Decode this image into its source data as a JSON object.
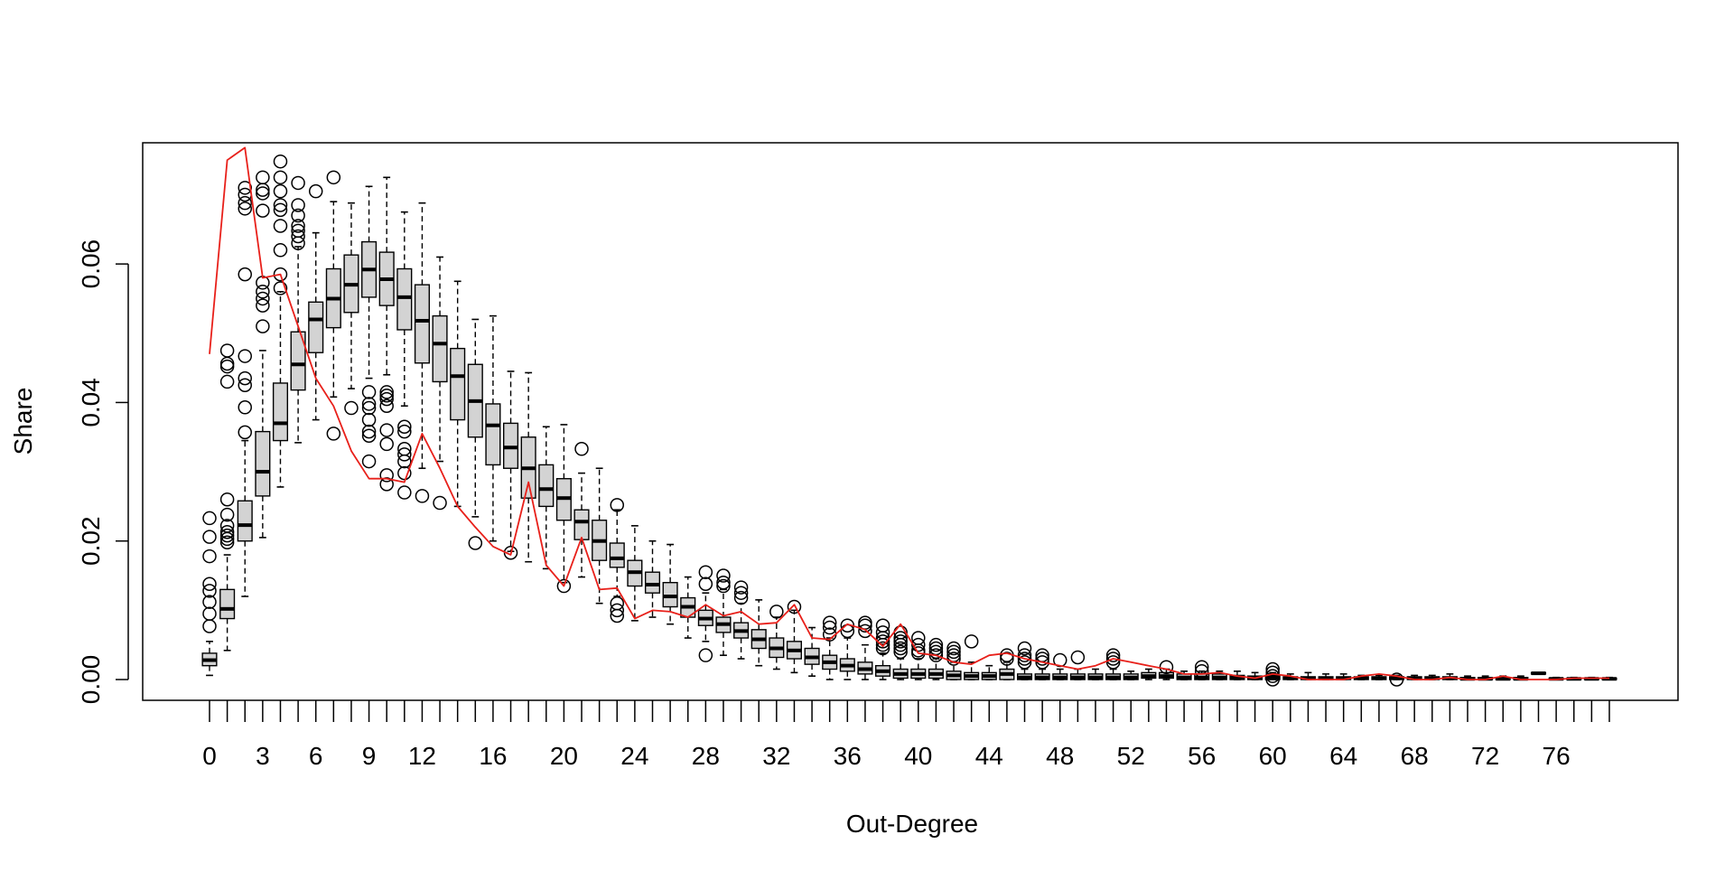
{
  "chart_data": {
    "type": "boxplot",
    "title": "",
    "xlabel": "Out-Degree",
    "ylabel": "Share",
    "x_categories_start": 0,
    "x_categories_end": 79,
    "x_tick_labels": [
      "0",
      "3",
      "6",
      "9",
      "12",
      "16",
      "20",
      "24",
      "28",
      "32",
      "36",
      "40",
      "44",
      "48",
      "52",
      "56",
      "60",
      "64",
      "68",
      "72",
      "76"
    ],
    "y_ticks": [
      "0.00",
      "0.02",
      "0.04",
      "0.06"
    ],
    "ylim": [
      -0.003,
      0.0775
    ],
    "grid": false,
    "legend": "none",
    "colors": {
      "box_fill": "#d3d3d3",
      "box_stroke": "#000000",
      "line": "#e8201a"
    },
    "boxes": [
      {
        "x": 0,
        "q1": 0.002,
        "median": 0.0028,
        "q3": 0.0038,
        "wlo": 0.0006,
        "whi": 0.0055,
        "outliers": [
          0.0233,
          0.0206,
          0.0178,
          0.0138,
          0.0128,
          0.0112,
          0.0095,
          0.0077
        ]
      },
      {
        "x": 1,
        "q1": 0.0088,
        "median": 0.0102,
        "q3": 0.013,
        "wlo": 0.0042,
        "whi": 0.018,
        "outliers": [
          0.0475,
          0.0456,
          0.0452,
          0.043,
          0.026,
          0.0238,
          0.0222,
          0.0213,
          0.0208,
          0.0203,
          0.0198
        ]
      },
      {
        "x": 2,
        "q1": 0.02,
        "median": 0.0223,
        "q3": 0.0258,
        "wlo": 0.012,
        "whi": 0.0345,
        "outliers": [
          0.071,
          0.07,
          0.0688,
          0.068,
          0.0585,
          0.0467,
          0.0435,
          0.0425,
          0.0393,
          0.0357
        ]
      },
      {
        "x": 3,
        "q1": 0.0265,
        "median": 0.03,
        "q3": 0.0358,
        "wlo": 0.0205,
        "whi": 0.0475,
        "outliers": [
          0.0725,
          0.0707,
          0.0702,
          0.0677,
          0.0573,
          0.056,
          0.055,
          0.054,
          0.051
        ]
      },
      {
        "x": 4,
        "q1": 0.0345,
        "median": 0.037,
        "q3": 0.0428,
        "wlo": 0.0278,
        "whi": 0.056,
        "outliers": [
          0.0748,
          0.0725,
          0.0705,
          0.0685,
          0.0678,
          0.0655,
          0.062,
          0.0585,
          0.0565
        ]
      },
      {
        "x": 5,
        "q1": 0.0418,
        "median": 0.0455,
        "q3": 0.0502,
        "wlo": 0.0342,
        "whi": 0.0625,
        "outliers": [
          0.0717,
          0.0685,
          0.067,
          0.0655,
          0.0648,
          0.064,
          0.063
        ]
      },
      {
        "x": 6,
        "q1": 0.0472,
        "median": 0.052,
        "q3": 0.0545,
        "wlo": 0.0375,
        "whi": 0.0645,
        "outliers": [
          0.0705
        ]
      },
      {
        "x": 7,
        "q1": 0.0508,
        "median": 0.055,
        "q3": 0.0593,
        "wlo": 0.0408,
        "whi": 0.069,
        "outliers": [
          0.0725,
          0.0355
        ]
      },
      {
        "x": 8,
        "q1": 0.053,
        "median": 0.057,
        "q3": 0.0613,
        "wlo": 0.042,
        "whi": 0.0688,
        "outliers": [
          0.0392
        ]
      },
      {
        "x": 9,
        "q1": 0.0552,
        "median": 0.0592,
        "q3": 0.0632,
        "wlo": 0.0435,
        "whi": 0.0712,
        "outliers": [
          0.0415,
          0.0398,
          0.0392,
          0.0375,
          0.0358,
          0.0352,
          0.0315
        ]
      },
      {
        "x": 10,
        "q1": 0.054,
        "median": 0.0578,
        "q3": 0.0617,
        "wlo": 0.044,
        "whi": 0.0725,
        "outliers": [
          0.0415,
          0.041,
          0.0405,
          0.0395,
          0.036,
          0.034,
          0.0295,
          0.0282
        ]
      },
      {
        "x": 11,
        "q1": 0.0505,
        "median": 0.0552,
        "q3": 0.0593,
        "wlo": 0.0395,
        "whi": 0.0675,
        "outliers": [
          0.0365,
          0.0358,
          0.0333,
          0.0325,
          0.0315,
          0.0298,
          0.027
        ]
      },
      {
        "x": 12,
        "q1": 0.0457,
        "median": 0.0518,
        "q3": 0.057,
        "wlo": 0.0305,
        "whi": 0.0688,
        "outliers": [
          0.0265
        ]
      },
      {
        "x": 13,
        "q1": 0.043,
        "median": 0.0485,
        "q3": 0.0525,
        "wlo": 0.0315,
        "whi": 0.061,
        "outliers": [
          0.0255
        ]
      },
      {
        "x": 14,
        "q1": 0.0375,
        "median": 0.0438,
        "q3": 0.0478,
        "wlo": 0.025,
        "whi": 0.0575,
        "outliers": []
      },
      {
        "x": 15,
        "q1": 0.035,
        "median": 0.0402,
        "q3": 0.0455,
        "wlo": 0.0235,
        "whi": 0.052,
        "outliers": [
          0.0197
        ]
      },
      {
        "x": 16,
        "q1": 0.031,
        "median": 0.0367,
        "q3": 0.0398,
        "wlo": 0.02,
        "whi": 0.0525,
        "outliers": []
      },
      {
        "x": 17,
        "q1": 0.0305,
        "median": 0.0335,
        "q3": 0.037,
        "wlo": 0.0185,
        "whi": 0.0445,
        "outliers": [
          0.0183
        ]
      },
      {
        "x": 18,
        "q1": 0.0262,
        "median": 0.0305,
        "q3": 0.035,
        "wlo": 0.017,
        "whi": 0.0443,
        "outliers": []
      },
      {
        "x": 19,
        "q1": 0.025,
        "median": 0.0275,
        "q3": 0.031,
        "wlo": 0.016,
        "whi": 0.0365,
        "outliers": []
      },
      {
        "x": 20,
        "q1": 0.023,
        "median": 0.0262,
        "q3": 0.029,
        "wlo": 0.014,
        "whi": 0.0368,
        "outliers": [
          0.0135
        ]
      },
      {
        "x": 21,
        "q1": 0.0202,
        "median": 0.0228,
        "q3": 0.0245,
        "wlo": 0.0148,
        "whi": 0.0298,
        "outliers": [
          0.0333
        ]
      },
      {
        "x": 22,
        "q1": 0.0172,
        "median": 0.02,
        "q3": 0.023,
        "wlo": 0.011,
        "whi": 0.0305,
        "outliers": []
      },
      {
        "x": 23,
        "q1": 0.0162,
        "median": 0.0175,
        "q3": 0.0197,
        "wlo": 0.012,
        "whi": 0.0245,
        "outliers": [
          0.0252,
          0.011,
          0.01,
          0.0092
        ]
      },
      {
        "x": 24,
        "q1": 0.0135,
        "median": 0.0155,
        "q3": 0.0172,
        "wlo": 0.0085,
        "whi": 0.0222,
        "outliers": []
      },
      {
        "x": 25,
        "q1": 0.0125,
        "median": 0.0137,
        "q3": 0.0155,
        "wlo": 0.009,
        "whi": 0.02,
        "outliers": []
      },
      {
        "x": 26,
        "q1": 0.0105,
        "median": 0.012,
        "q3": 0.014,
        "wlo": 0.008,
        "whi": 0.0195,
        "outliers": []
      },
      {
        "x": 27,
        "q1": 0.009,
        "median": 0.0105,
        "q3": 0.0118,
        "wlo": 0.006,
        "whi": 0.0148,
        "outliers": []
      },
      {
        "x": 28,
        "q1": 0.0078,
        "median": 0.0088,
        "q3": 0.01,
        "wlo": 0.0055,
        "whi": 0.0125,
        "outliers": [
          0.0155,
          0.0138,
          0.0035
        ]
      },
      {
        "x": 29,
        "q1": 0.0068,
        "median": 0.008,
        "q3": 0.009,
        "wlo": 0.0035,
        "whi": 0.013,
        "outliers": [
          0.015,
          0.014,
          0.0135
        ]
      },
      {
        "x": 30,
        "q1": 0.006,
        "median": 0.007,
        "q3": 0.0082,
        "wlo": 0.003,
        "whi": 0.011,
        "outliers": [
          0.0133,
          0.0125,
          0.0118
        ]
      },
      {
        "x": 31,
        "q1": 0.0045,
        "median": 0.0058,
        "q3": 0.0072,
        "wlo": 0.002,
        "whi": 0.0115,
        "outliers": []
      },
      {
        "x": 32,
        "q1": 0.0032,
        "median": 0.0045,
        "q3": 0.006,
        "wlo": 0.0015,
        "whi": 0.009,
        "outliers": [
          0.0098
        ]
      },
      {
        "x": 33,
        "q1": 0.003,
        "median": 0.0042,
        "q3": 0.0055,
        "wlo": 0.001,
        "whi": 0.01,
        "outliers": [
          0.0105
        ]
      },
      {
        "x": 34,
        "q1": 0.0022,
        "median": 0.0032,
        "q3": 0.0045,
        "wlo": 0.0005,
        "whi": 0.0075,
        "outliers": []
      },
      {
        "x": 35,
        "q1": 0.0015,
        "median": 0.0025,
        "q3": 0.0035,
        "wlo": 0.0,
        "whi": 0.006,
        "outliers": [
          0.0082,
          0.0075,
          0.0065
        ]
      },
      {
        "x": 36,
        "q1": 0.0012,
        "median": 0.002,
        "q3": 0.003,
        "wlo": 0.0,
        "whi": 0.006,
        "outliers": [
          0.0078,
          0.007
        ]
      },
      {
        "x": 37,
        "q1": 0.0008,
        "median": 0.0015,
        "q3": 0.0025,
        "wlo": 0.0,
        "whi": 0.005,
        "outliers": [
          0.0082,
          0.0078,
          0.007
        ]
      },
      {
        "x": 38,
        "q1": 0.0005,
        "median": 0.0012,
        "q3": 0.002,
        "wlo": 0.0,
        "whi": 0.0038,
        "outliers": [
          0.0078,
          0.0068,
          0.006,
          0.0055,
          0.005,
          0.0045
        ]
      },
      {
        "x": 39,
        "q1": 0.0002,
        "median": 0.0008,
        "q3": 0.0015,
        "wlo": 0.0,
        "whi": 0.003,
        "outliers": [
          0.0068,
          0.006,
          0.0055,
          0.005,
          0.0045,
          0.004
        ]
      },
      {
        "x": 40,
        "q1": 0.0002,
        "median": 0.0008,
        "q3": 0.0015,
        "wlo": 0.0,
        "whi": 0.003,
        "outliers": [
          0.006,
          0.005,
          0.0042,
          0.0038
        ]
      },
      {
        "x": 41,
        "q1": 0.0002,
        "median": 0.0008,
        "q3": 0.0015,
        "wlo": 0.0,
        "whi": 0.003,
        "outliers": [
          0.005,
          0.0045,
          0.004,
          0.0035
        ]
      },
      {
        "x": 42,
        "q1": 0.0,
        "median": 0.0006,
        "q3": 0.0012,
        "wlo": 0.0,
        "whi": 0.0025,
        "outliers": [
          0.0045,
          0.004,
          0.0035,
          0.003
        ]
      },
      {
        "x": 43,
        "q1": 0.0,
        "median": 0.0005,
        "q3": 0.001,
        "wlo": 0.0,
        "whi": 0.0025,
        "outliers": [
          0.0055
        ]
      },
      {
        "x": 44,
        "q1": 0.0,
        "median": 0.0005,
        "q3": 0.001,
        "wlo": 0.0,
        "whi": 0.002,
        "outliers": []
      },
      {
        "x": 45,
        "q1": 0.0,
        "median": 0.0008,
        "q3": 0.0015,
        "wlo": 0.0,
        "whi": 0.0025,
        "outliers": [
          0.0035,
          0.003
        ]
      },
      {
        "x": 46,
        "q1": 0.0,
        "median": 0.0003,
        "q3": 0.0008,
        "wlo": 0.0,
        "whi": 0.0015,
        "outliers": [
          0.0045,
          0.0035,
          0.003,
          0.0025
        ]
      },
      {
        "x": 47,
        "q1": 0.0,
        "median": 0.0003,
        "q3": 0.0008,
        "wlo": 0.0,
        "whi": 0.0015,
        "outliers": [
          0.0035,
          0.003,
          0.0025
        ]
      },
      {
        "x": 48,
        "q1": 0.0,
        "median": 0.0003,
        "q3": 0.0008,
        "wlo": 0.0,
        "whi": 0.0015,
        "outliers": [
          0.0028
        ]
      },
      {
        "x": 49,
        "q1": 0.0,
        "median": 0.0003,
        "q3": 0.0008,
        "wlo": 0.0,
        "whi": 0.0015,
        "outliers": [
          0.0032
        ]
      },
      {
        "x": 50,
        "q1": 0.0,
        "median": 0.0003,
        "q3": 0.0008,
        "wlo": 0.0,
        "whi": 0.0015,
        "outliers": []
      },
      {
        "x": 51,
        "q1": 0.0,
        "median": 0.0003,
        "q3": 0.0008,
        "wlo": 0.0,
        "whi": 0.0015,
        "outliers": [
          0.0035,
          0.003,
          0.0025
        ]
      },
      {
        "x": 52,
        "q1": 0.0,
        "median": 0.0003,
        "q3": 0.0008,
        "wlo": 0.0,
        "whi": 0.0012,
        "outliers": []
      },
      {
        "x": 53,
        "q1": 0.0002,
        "median": 0.0005,
        "q3": 0.001,
        "wlo": 0.0,
        "whi": 0.0015,
        "outliers": []
      },
      {
        "x": 54,
        "q1": 0.0002,
        "median": 0.0005,
        "q3": 0.001,
        "wlo": 0.0,
        "whi": 0.0015,
        "outliers": [
          0.0018
        ]
      },
      {
        "x": 55,
        "q1": 0.0,
        "median": 0.0003,
        "q3": 0.0008,
        "wlo": 0.0,
        "whi": 0.0012,
        "outliers": []
      },
      {
        "x": 56,
        "q1": 0.0,
        "median": 0.0003,
        "q3": 0.0008,
        "wlo": 0.0,
        "whi": 0.0012,
        "outliers": [
          0.0018,
          0.0012
        ]
      },
      {
        "x": 57,
        "q1": 0.0,
        "median": 0.0003,
        "q3": 0.0008,
        "wlo": 0.0,
        "whi": 0.0012,
        "outliers": []
      },
      {
        "x": 58,
        "q1": 0.0,
        "median": 0.0003,
        "q3": 0.0006,
        "wlo": 0.0,
        "whi": 0.0012,
        "outliers": []
      },
      {
        "x": 59,
        "q1": 0.0,
        "median": 0.0002,
        "q3": 0.0005,
        "wlo": 0.0,
        "whi": 0.001,
        "outliers": []
      },
      {
        "x": 60,
        "q1": 0.0,
        "median": 0.0003,
        "q3": 0.0006,
        "wlo": 0.0,
        "whi": 0.001,
        "outliers": [
          0.0015,
          0.001,
          0.0005,
          0.0
        ]
      },
      {
        "x": 61,
        "q1": 0.0,
        "median": 0.0002,
        "q3": 0.0004,
        "wlo": 0.0,
        "whi": 0.0008,
        "outliers": []
      },
      {
        "x": 62,
        "q1": 0.0,
        "median": 0.0002,
        "q3": 0.0004,
        "wlo": 0.0,
        "whi": 0.001,
        "outliers": []
      },
      {
        "x": 63,
        "q1": 0.0,
        "median": 0.0002,
        "q3": 0.0004,
        "wlo": 0.0,
        "whi": 0.0008,
        "outliers": []
      },
      {
        "x": 64,
        "q1": 0.0,
        "median": 0.0002,
        "q3": 0.0004,
        "wlo": 0.0,
        "whi": 0.0008,
        "outliers": []
      },
      {
        "x": 65,
        "q1": 0.0,
        "median": 0.0002,
        "q3": 0.0004,
        "wlo": 0.0,
        "whi": 0.0006,
        "outliers": []
      },
      {
        "x": 66,
        "q1": 0.0,
        "median": 0.0002,
        "q3": 0.0004,
        "wlo": 0.0,
        "whi": 0.0006,
        "outliers": []
      },
      {
        "x": 67,
        "q1": 0.0,
        "median": 0.0002,
        "q3": 0.0004,
        "wlo": 0.0,
        "whi": 0.0006,
        "outliers": [
          0.0
        ]
      },
      {
        "x": 68,
        "q1": 0.0,
        "median": 0.0002,
        "q3": 0.0004,
        "wlo": 0.0,
        "whi": 0.0006,
        "outliers": []
      },
      {
        "x": 69,
        "q1": 0.0,
        "median": 0.0002,
        "q3": 0.0004,
        "wlo": 0.0,
        "whi": 0.0006,
        "outliers": []
      },
      {
        "x": 70,
        "q1": 0.0,
        "median": 0.0002,
        "q3": 0.0004,
        "wlo": 0.0,
        "whi": 0.0008,
        "outliers": []
      },
      {
        "x": 71,
        "q1": 0.0,
        "median": 0.0001,
        "q3": 0.0003,
        "wlo": 0.0,
        "whi": 0.0005,
        "outliers": []
      },
      {
        "x": 72,
        "q1": 0.0,
        "median": 0.0001,
        "q3": 0.0003,
        "wlo": 0.0,
        "whi": 0.0005,
        "outliers": []
      },
      {
        "x": 73,
        "q1": 0.0,
        "median": 0.0001,
        "q3": 0.0003,
        "wlo": 0.0,
        "whi": 0.0005,
        "outliers": []
      },
      {
        "x": 74,
        "q1": 0.0,
        "median": 0.0001,
        "q3": 0.0003,
        "wlo": 0.0,
        "whi": 0.0005,
        "outliers": []
      },
      {
        "x": 75,
        "q1": 0.0008,
        "median": 0.0009,
        "q3": 0.001,
        "wlo": 0.0008,
        "whi": 0.001,
        "outliers": []
      },
      {
        "x": 76,
        "q1": 0.0,
        "median": 0.0001,
        "q3": 0.0002,
        "wlo": 0.0,
        "whi": 0.0003,
        "outliers": []
      },
      {
        "x": 77,
        "q1": 0.0,
        "median": 0.0001,
        "q3": 0.0002,
        "wlo": 0.0,
        "whi": 0.0003,
        "outliers": []
      },
      {
        "x": 78,
        "q1": 0.0,
        "median": 0.0001,
        "q3": 0.0002,
        "wlo": 0.0,
        "whi": 0.0003,
        "outliers": []
      },
      {
        "x": 79,
        "q1": 0.0,
        "median": 0.0001,
        "q3": 0.0002,
        "wlo": 0.0,
        "whi": 0.0003,
        "outliers": []
      }
    ],
    "line_series": {
      "x": [
        0,
        1,
        2,
        3,
        4,
        5,
        6,
        7,
        8,
        9,
        10,
        11,
        12,
        13,
        14,
        15,
        16,
        17,
        18,
        19,
        20,
        21,
        22,
        23,
        24,
        25,
        26,
        27,
        28,
        29,
        30,
        31,
        32,
        33,
        34,
        35,
        36,
        37,
        38,
        39,
        40,
        41,
        42,
        43,
        44,
        45,
        46,
        47,
        48,
        49,
        50,
        51,
        52,
        53,
        54,
        55,
        56,
        57,
        58,
        59,
        60,
        61,
        62,
        63,
        64,
        65,
        66,
        67,
        68,
        69,
        70,
        71,
        72,
        73,
        74,
        75,
        76,
        77,
        78,
        79
      ],
      "y": [
        0.047,
        0.075,
        0.0768,
        0.058,
        0.0585,
        0.051,
        0.0435,
        0.0395,
        0.033,
        0.029,
        0.029,
        0.0285,
        0.0355,
        0.0305,
        0.025,
        0.022,
        0.0192,
        0.018,
        0.0285,
        0.0165,
        0.0135,
        0.0205,
        0.013,
        0.0132,
        0.0088,
        0.01,
        0.0098,
        0.009,
        0.0108,
        0.0092,
        0.0098,
        0.008,
        0.0082,
        0.0108,
        0.006,
        0.0058,
        0.008,
        0.0072,
        0.0048,
        0.008,
        0.0038,
        0.0035,
        0.0025,
        0.0022,
        0.0035,
        0.0038,
        0.003,
        0.0025,
        0.002,
        0.0015,
        0.002,
        0.003,
        0.0025,
        0.002,
        0.0015,
        0.0008,
        0.0008,
        0.001,
        0.0005,
        0.0002,
        0.0008,
        0.0005,
        0.0,
        0.0,
        0.0,
        0.0005,
        0.0008,
        0.0005,
        0.0,
        0.0,
        0.0003,
        0.0,
        0.0,
        0.0005,
        0.0,
        0.0,
        0.0,
        0.0002,
        0.0002,
        0.0002
      ]
    }
  }
}
